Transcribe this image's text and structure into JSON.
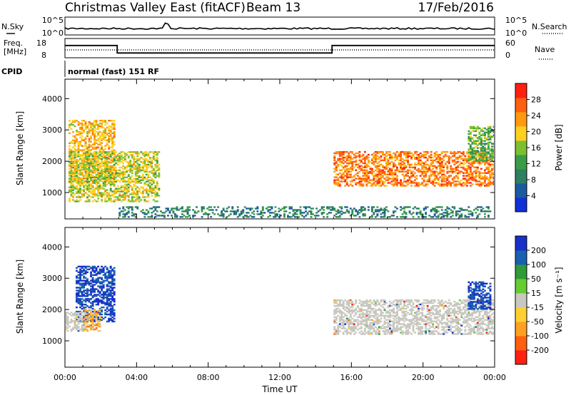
{
  "header": {
    "title": "Christmas Valley East (fitACF)",
    "beam": "Beam 13",
    "date": "17/Feb/2016"
  },
  "nsky_panel": {
    "left_label": "N.Sky",
    "left_ticks": [
      "10^5",
      "10^0"
    ],
    "right_ticks": [
      "10^5",
      "10^0"
    ],
    "right_label": "N.Search"
  },
  "freq_panel": {
    "left_label_line1": "Freq.",
    "left_label_line2": "[MHz]",
    "left_ticks": [
      "18",
      "8"
    ],
    "right_ticks": [
      "60",
      "0"
    ],
    "right_label": "Nave"
  },
  "cpid": {
    "label": "CPID",
    "value": "normal (fast) 151 RF"
  },
  "x_axis": {
    "label": "Time UT",
    "ticks": [
      "00:00",
      "04:00",
      "08:00",
      "12:00",
      "16:00",
      "20:00",
      "00:00"
    ]
  },
  "y_axis": {
    "label": "Slant Range [km]",
    "ticks": [
      "1000",
      "2000",
      "3000",
      "4000"
    ]
  },
  "colorbars": {
    "power": {
      "label": "Power [dB]",
      "ticks": [
        "4",
        "8",
        "12",
        "16",
        "20",
        "24",
        "28"
      ],
      "colors": [
        "#1030d8",
        "#1c5aa0",
        "#2e8060",
        "#3a9c48",
        "#7cc030",
        "#ffd020",
        "#ff9a10",
        "#ff6010",
        "#ff2010"
      ]
    },
    "velocity": {
      "label": "Velocity [m s⁻¹]",
      "ticks": [
        "200",
        "100",
        "50",
        "15",
        "-15",
        "-50",
        "-100",
        "-200"
      ],
      "colors": [
        "#1830c8",
        "#1a60b0",
        "#2f9a3a",
        "#66cc33",
        "#c8c8c0",
        "#ffd030",
        "#ffa020",
        "#ff6010",
        "#ff2010"
      ]
    }
  },
  "chart_data": {
    "type": "heatmap",
    "x_range_hours": [
      0,
      24
    ],
    "y_range_km": [
      180,
      4600
    ],
    "frequency_mhz": {
      "x": [
        "00:00",
        "02:55",
        "02:55",
        "14:55",
        "14:55",
        "24:00"
      ],
      "y": [
        14.5,
        14.5,
        10.3,
        10.3,
        14.5,
        14.5
      ]
    },
    "power_regions": [
      {
        "id": "morning_arc_upper",
        "t_start": 0.2,
        "t_end": 2.8,
        "r_start": 1300,
        "r_end": 3300,
        "db": 22
      },
      {
        "id": "morning_band",
        "t_start": 0.2,
        "t_end": 5.2,
        "r_start": 700,
        "r_end": 2300,
        "db": 18
      },
      {
        "id": "ground_scatter_low",
        "t_start": 3.0,
        "t_end": 23.8,
        "r_start": 200,
        "r_end": 550,
        "db": 8
      },
      {
        "id": "evening_band",
        "t_start": 15.0,
        "t_end": 24.0,
        "r_start": 1200,
        "r_end": 2300,
        "db": 26
      },
      {
        "id": "late_evening_high",
        "t_start": 22.5,
        "t_end": 24.0,
        "r_start": 2000,
        "r_end": 3100,
        "db": 14
      }
    ],
    "velocity_regions": [
      {
        "id": "morning_blue",
        "t_start": 0.6,
        "t_end": 2.8,
        "r_start": 1600,
        "r_end": 3400,
        "v": 150
      },
      {
        "id": "morning_gray",
        "t_start": 0.0,
        "t_end": 1.2,
        "r_start": 1300,
        "r_end": 1900,
        "v": 0
      },
      {
        "id": "morning_orange",
        "t_start": 1.0,
        "t_end": 2.0,
        "r_start": 1300,
        "r_end": 2000,
        "v": -50
      },
      {
        "id": "evening_gray",
        "t_start": 15.0,
        "t_end": 24.0,
        "r_start": 1200,
        "r_end": 2300,
        "v": 0
      },
      {
        "id": "late_evening_blue",
        "t_start": 22.5,
        "t_end": 23.8,
        "r_start": 2000,
        "r_end": 2900,
        "v": 150
      }
    ]
  }
}
